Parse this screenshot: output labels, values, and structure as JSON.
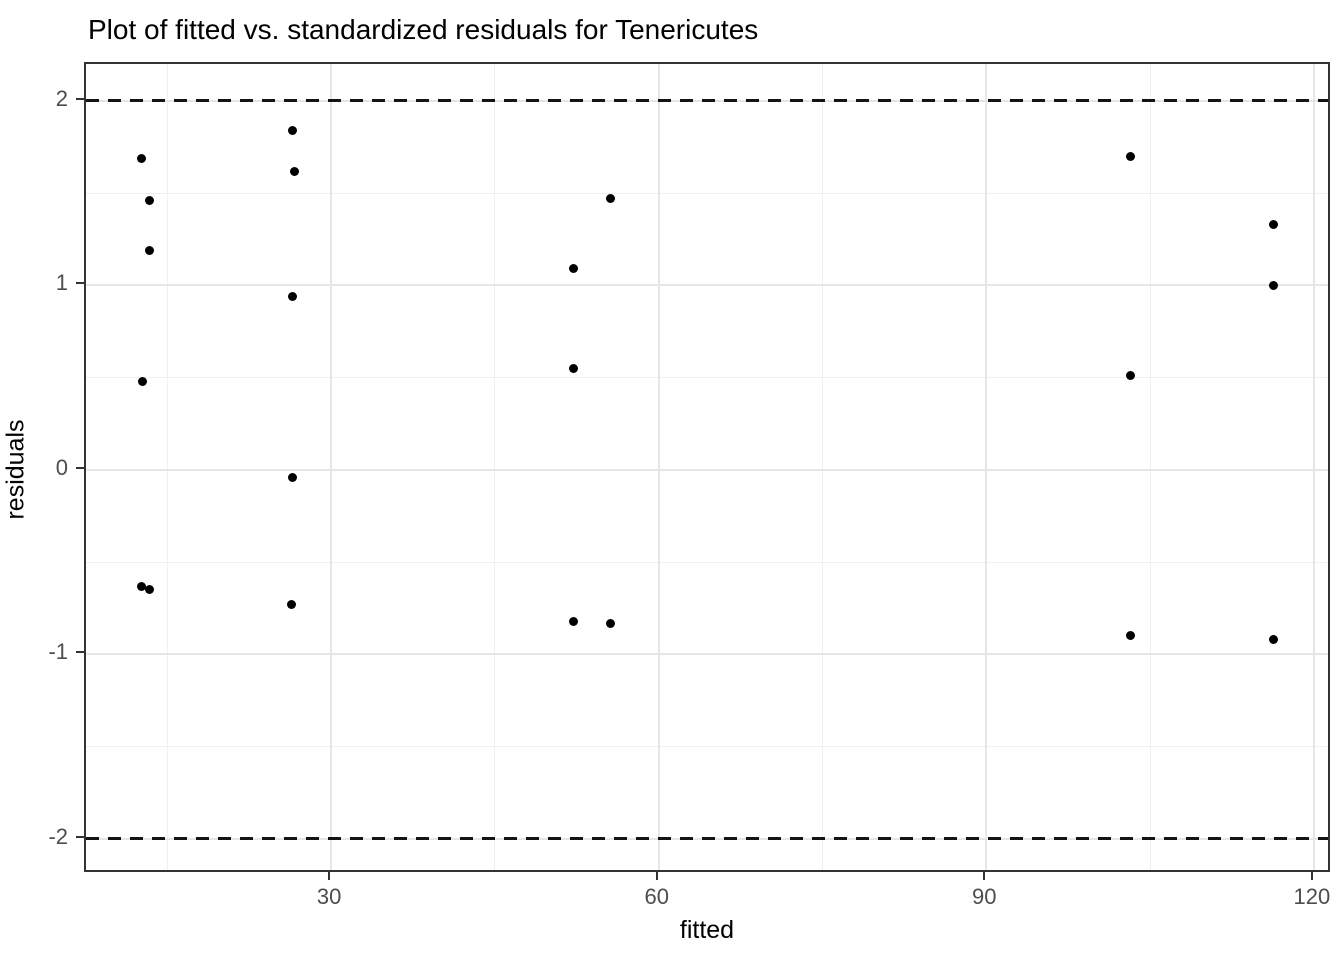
{
  "title": "Plot of fitted vs. standardized residuals for Tenericutes",
  "chart_data": {
    "type": "scatter",
    "title": "Plot of fitted vs. standardized residuals for Tenericutes",
    "xlabel": "fitted",
    "ylabel": "residuals",
    "xlim": [
      7.55,
      121.66
    ],
    "ylim": [
      -2.19,
      2.2
    ],
    "x_ticks": [
      30,
      60,
      90,
      120
    ],
    "y_ticks": [
      -2,
      -1,
      0,
      1,
      2
    ],
    "x_minor_gridlines": [
      15,
      45,
      75,
      105
    ],
    "y_minor_gridlines": [
      -1.5,
      -0.5,
      0.5,
      1.5
    ],
    "grid": true,
    "legend": false,
    "threshold_lines": [
      {
        "y": 2,
        "style": "dashed",
        "color": "#141414"
      },
      {
        "y": -2,
        "style": "dashed",
        "color": "#141414"
      }
    ],
    "point_color": "#000000",
    "points": [
      [
        12.6,
        1.69
      ],
      [
        12.7,
        0.48
      ],
      [
        12.6,
        -0.63
      ],
      [
        13.4,
        1.46
      ],
      [
        13.4,
        1.19
      ],
      [
        13.4,
        -0.65
      ],
      [
        26.5,
        1.84
      ],
      [
        26.6,
        1.62
      ],
      [
        26.5,
        0.94
      ],
      [
        26.5,
        -0.04
      ],
      [
        26.4,
        -0.73
      ],
      [
        52.2,
        1.09
      ],
      [
        52.2,
        0.55
      ],
      [
        52.2,
        -0.82
      ],
      [
        55.6,
        1.47
      ],
      [
        55.6,
        -0.83
      ],
      [
        103.2,
        1.7
      ],
      [
        103.2,
        0.51
      ],
      [
        103.2,
        -0.9
      ],
      [
        116.3,
        1.33
      ],
      [
        116.3,
        1.0
      ],
      [
        116.3,
        -0.92
      ]
    ]
  },
  "colors": {
    "background": "#ffffff",
    "panel_border": "#333333",
    "grid_major": "#e6e6e6",
    "grid_minor": "#f0f0f0",
    "tick_label": "#4d4d4d",
    "point": "#000000"
  }
}
